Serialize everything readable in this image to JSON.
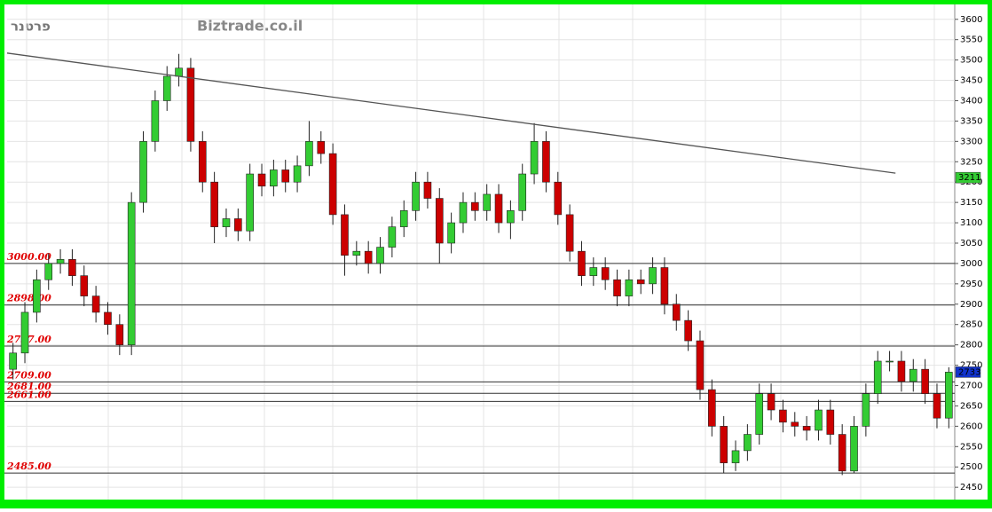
{
  "chart_data": {
    "type": "candlestick",
    "title": "Biztrade.co.il",
    "symbol": "פרטנר",
    "open": [
      2740,
      2780,
      2880,
      2960,
      3000,
      3010,
      2970,
      2920,
      2880,
      2850,
      2800,
      3150,
      3300,
      3400,
      3460,
      3480,
      3300,
      3200,
      3090,
      3110,
      3080,
      3220,
      3190,
      3230,
      3200,
      3240,
      3300,
      3270,
      3120,
      3020,
      3030,
      3000,
      3040,
      3090,
      3130,
      3200,
      3160,
      3050,
      3100,
      3150,
      3130,
      3170,
      3100,
      3130,
      3220,
      3300,
      3200,
      3120,
      3030,
      2970,
      2990,
      2960,
      2920,
      2960,
      2950,
      2990,
      2900,
      2860,
      2810,
      2690,
      2600,
      2510,
      2540,
      2580,
      2680,
      2640,
      2610,
      2600,
      2590,
      2640,
      2580,
      2490,
      2600,
      2680,
      2760,
      2760,
      2710,
      2740,
      2680,
      2620
    ],
    "high": [
      2805,
      2905,
      2985,
      3025,
      3035,
      3035,
      2995,
      2945,
      2905,
      2875,
      3175,
      3325,
      3425,
      3485,
      3515,
      3505,
      3325,
      3225,
      3135,
      3135,
      3245,
      3245,
      3255,
      3255,
      3265,
      3350,
      3325,
      3295,
      3145,
      3055,
      3055,
      3065,
      3115,
      3155,
      3225,
      3225,
      3185,
      3125,
      3175,
      3175,
      3195,
      3195,
      3155,
      3245,
      3345,
      3325,
      3225,
      3145,
      3055,
      3015,
      3015,
      2985,
      2985,
      2985,
      3015,
      3015,
      2925,
      2885,
      2835,
      2715,
      2625,
      2565,
      2605,
      2705,
      2705,
      2665,
      2635,
      2625,
      2665,
      2665,
      2605,
      2625,
      2705,
      2785,
      2785,
      2785,
      2765,
      2765,
      2705,
      2745
    ],
    "low": [
      2715,
      2755,
      2855,
      2935,
      2975,
      2945,
      2895,
      2855,
      2825,
      2775,
      2775,
      3125,
      3275,
      3375,
      3435,
      3275,
      3175,
      3050,
      3065,
      3055,
      3055,
      3165,
      3165,
      3175,
      3175,
      3215,
      3245,
      3095,
      2970,
      2995,
      2975,
      2975,
      3015,
      3065,
      3105,
      3135,
      3000,
      3025,
      3075,
      3105,
      3105,
      3075,
      3060,
      3105,
      3195,
      3175,
      3095,
      3005,
      2945,
      2945,
      2935,
      2895,
      2895,
      2925,
      2925,
      2875,
      2835,
      2785,
      2665,
      2575,
      2485,
      2490,
      2515,
      2555,
      2615,
      2585,
      2575,
      2565,
      2565,
      2555,
      2480,
      2485,
      2575,
      2655,
      2735,
      2685,
      2685,
      2655,
      2595,
      2595
    ],
    "close": [
      2780,
      2880,
      2960,
      3000,
      3010,
      2970,
      2920,
      2880,
      2850,
      2800,
      3150,
      3300,
      3400,
      3460,
      3480,
      3300,
      3200,
      3090,
      3110,
      3080,
      3220,
      3190,
      3230,
      3200,
      3240,
      3300,
      3270,
      3120,
      3020,
      3030,
      3000,
      3040,
      3090,
      3130,
      3200,
      3160,
      3050,
      3100,
      3150,
      3130,
      3170,
      3100,
      3130,
      3220,
      3300,
      3200,
      3120,
      3030,
      2970,
      2990,
      2960,
      2920,
      2960,
      2950,
      2990,
      2900,
      2860,
      2810,
      2690,
      2600,
      2510,
      2540,
      2580,
      2680,
      2640,
      2610,
      2600,
      2590,
      2640,
      2580,
      2490,
      2600,
      2680,
      2760,
      2760,
      2710,
      2740,
      2680,
      2620,
      2733
    ],
    "up_color": "#33cc33",
    "down_color": "#cc0000",
    "ylim": [
      2422,
      3630
    ],
    "yticks": [
      2450,
      2500,
      2550,
      2600,
      2650,
      2700,
      2750,
      2800,
      2850,
      2900,
      2950,
      3000,
      3050,
      3100,
      3150,
      3200,
      3250,
      3300,
      3350,
      3400,
      3450,
      3500,
      3550,
      3600
    ],
    "levels": [
      {
        "value": 3000,
        "label": "3000.00"
      },
      {
        "value": 2898,
        "label": "2898.00"
      },
      {
        "value": 2797,
        "label": "2797.00"
      },
      {
        "value": 2709,
        "label": "2709.00"
      },
      {
        "value": 2681,
        "label": "2681.00"
      },
      {
        "value": 2661,
        "label": "2661.00"
      },
      {
        "value": 2485,
        "label": "2485.00"
      }
    ],
    "trendline": {
      "x": [
        -0.5,
        74.5
      ],
      "values": [
        3517,
        3222
      ]
    },
    "marker_price": 3211,
    "grid": true
  }
}
